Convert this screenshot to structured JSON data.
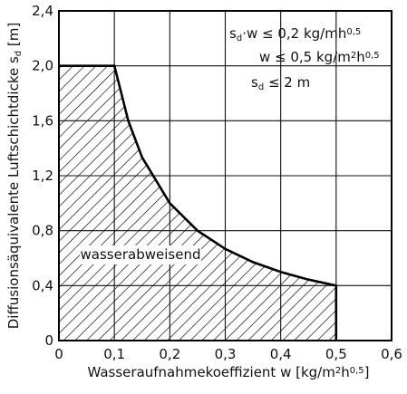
{
  "chart_data": {
    "type": "area",
    "xlim": [
      0,
      0.6
    ],
    "ylim": [
      0,
      2.4
    ],
    "x_ticks": [
      "0",
      "0,1",
      "0,2",
      "0,3",
      "0,4",
      "0,5",
      "0,6"
    ],
    "y_ticks": [
      "0",
      "0,4",
      "0,8",
      "1,2",
      "1,6",
      "2,0",
      "2,4"
    ],
    "x_tick_values": [
      0,
      0.1,
      0.2,
      0.3,
      0.4,
      0.5,
      0.6
    ],
    "y_tick_values": [
      0,
      0.4,
      0.8,
      1.2,
      1.6,
      2.0,
      2.4
    ],
    "grid": true,
    "xlabel": {
      "main": "Wasseraufnahmekoeffizient  w  [kg/m",
      "sup1": "2",
      "mid": "h",
      "sup2": "0,5",
      "end": "]"
    },
    "ylabel": {
      "main": "Diffusionsäquivalente Luftschichtdicke  s",
      "sub": "d",
      "end": " [m]"
    },
    "region_label": "wasserabweisend",
    "boundary": [
      {
        "x": 0,
        "y": 2.0
      },
      {
        "x": 0.1,
        "y": 2.0
      },
      {
        "x": 0.1,
        "y": 2.0
      },
      {
        "x": 0.125,
        "y": 1.6
      },
      {
        "x": 0.15,
        "y": 1.333
      },
      {
        "x": 0.2,
        "y": 1.0
      },
      {
        "x": 0.25,
        "y": 0.8
      },
      {
        "x": 0.3,
        "y": 0.667
      },
      {
        "x": 0.35,
        "y": 0.571
      },
      {
        "x": 0.4,
        "y": 0.5
      },
      {
        "x": 0.45,
        "y": 0.444
      },
      {
        "x": 0.5,
        "y": 0.4
      },
      {
        "x": 0.5,
        "y": 0
      }
    ],
    "conditions": [
      {
        "parts": [
          {
            "t": "s"
          },
          {
            "t": "d",
            "s": "sub"
          },
          {
            "t": "·w ≤ 0,2  kg/mh"
          },
          {
            "t": "0,5",
            "s": "sup"
          }
        ]
      },
      {
        "parts": [
          {
            "t": "w ≤ 0,5  kg/m"
          },
          {
            "t": "2",
            "s": "sup"
          },
          {
            "t": "h"
          },
          {
            "t": "0,5",
            "s": "sup"
          }
        ]
      },
      {
        "parts": [
          {
            "t": "s"
          },
          {
            "t": "d",
            "s": "sub"
          },
          {
            "t": " ≤  2   m"
          }
        ]
      }
    ]
  }
}
